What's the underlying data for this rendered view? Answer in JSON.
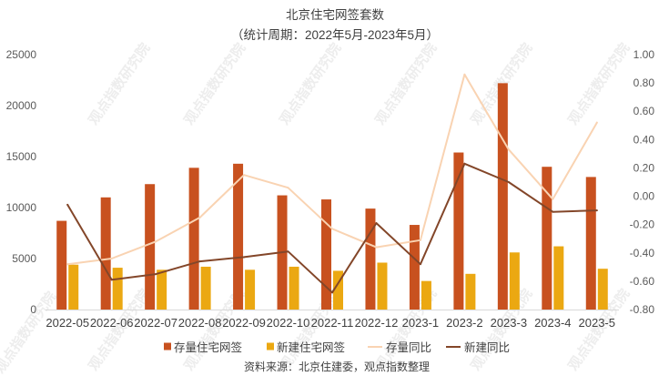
{
  "watermark": "观点指数研究院",
  "source": "资料来源：北京住建委，观点指数整理",
  "chart_data": {
    "type": "bar",
    "title": "北京住宅网签套数",
    "subtitle": "（统计周期：2022年5月-2023年5月）",
    "categories": [
      "2022-05",
      "2022-06",
      "2022-07",
      "2022-08",
      "2022-09",
      "2022-10",
      "2022-11",
      "2022-12",
      "2023-1",
      "2023-2",
      "2023-3",
      "2023-4",
      "2023-5"
    ],
    "ylim": [
      0,
      25000
    ],
    "y_ticks": [
      "0",
      "5000",
      "10000",
      "15000",
      "20000",
      "25000"
    ],
    "y2lim": [
      -0.8,
      1.0
    ],
    "y2_ticks": [
      "-0.80",
      "-0.60",
      "-0.40",
      "-0.20",
      "0.00",
      "0.20",
      "0.40",
      "0.60",
      "0.80",
      "1.00"
    ],
    "grid": false,
    "legend": "bottom",
    "series": [
      {
        "name": "存量住宅网签",
        "type": "bar",
        "axis": "left",
        "color": "#C8511F",
        "values": [
          8700,
          11000,
          12300,
          13900,
          14300,
          11200,
          10800,
          9900,
          8300,
          15400,
          22200,
          14000,
          13000
        ]
      },
      {
        "name": "新建住宅网签",
        "type": "bar",
        "axis": "left",
        "color": "#EBA812",
        "values": [
          4400,
          4100,
          3900,
          4200,
          3900,
          4200,
          3800,
          4600,
          2800,
          3500,
          5600,
          6200,
          4000
        ]
      },
      {
        "name": "存量同比",
        "type": "line",
        "axis": "right",
        "color": "#F9D3B2",
        "values": [
          -0.48,
          -0.44,
          -0.32,
          -0.15,
          0.15,
          0.06,
          -0.23,
          -0.36,
          -0.31,
          0.86,
          0.33,
          -0.02,
          0.52
        ]
      },
      {
        "name": "新建同比",
        "type": "line",
        "axis": "right",
        "color": "#834629",
        "values": [
          -0.06,
          -0.59,
          -0.55,
          -0.46,
          -0.43,
          -0.39,
          -0.68,
          -0.19,
          -0.48,
          0.23,
          0.1,
          -0.11,
          -0.1
        ]
      }
    ]
  }
}
